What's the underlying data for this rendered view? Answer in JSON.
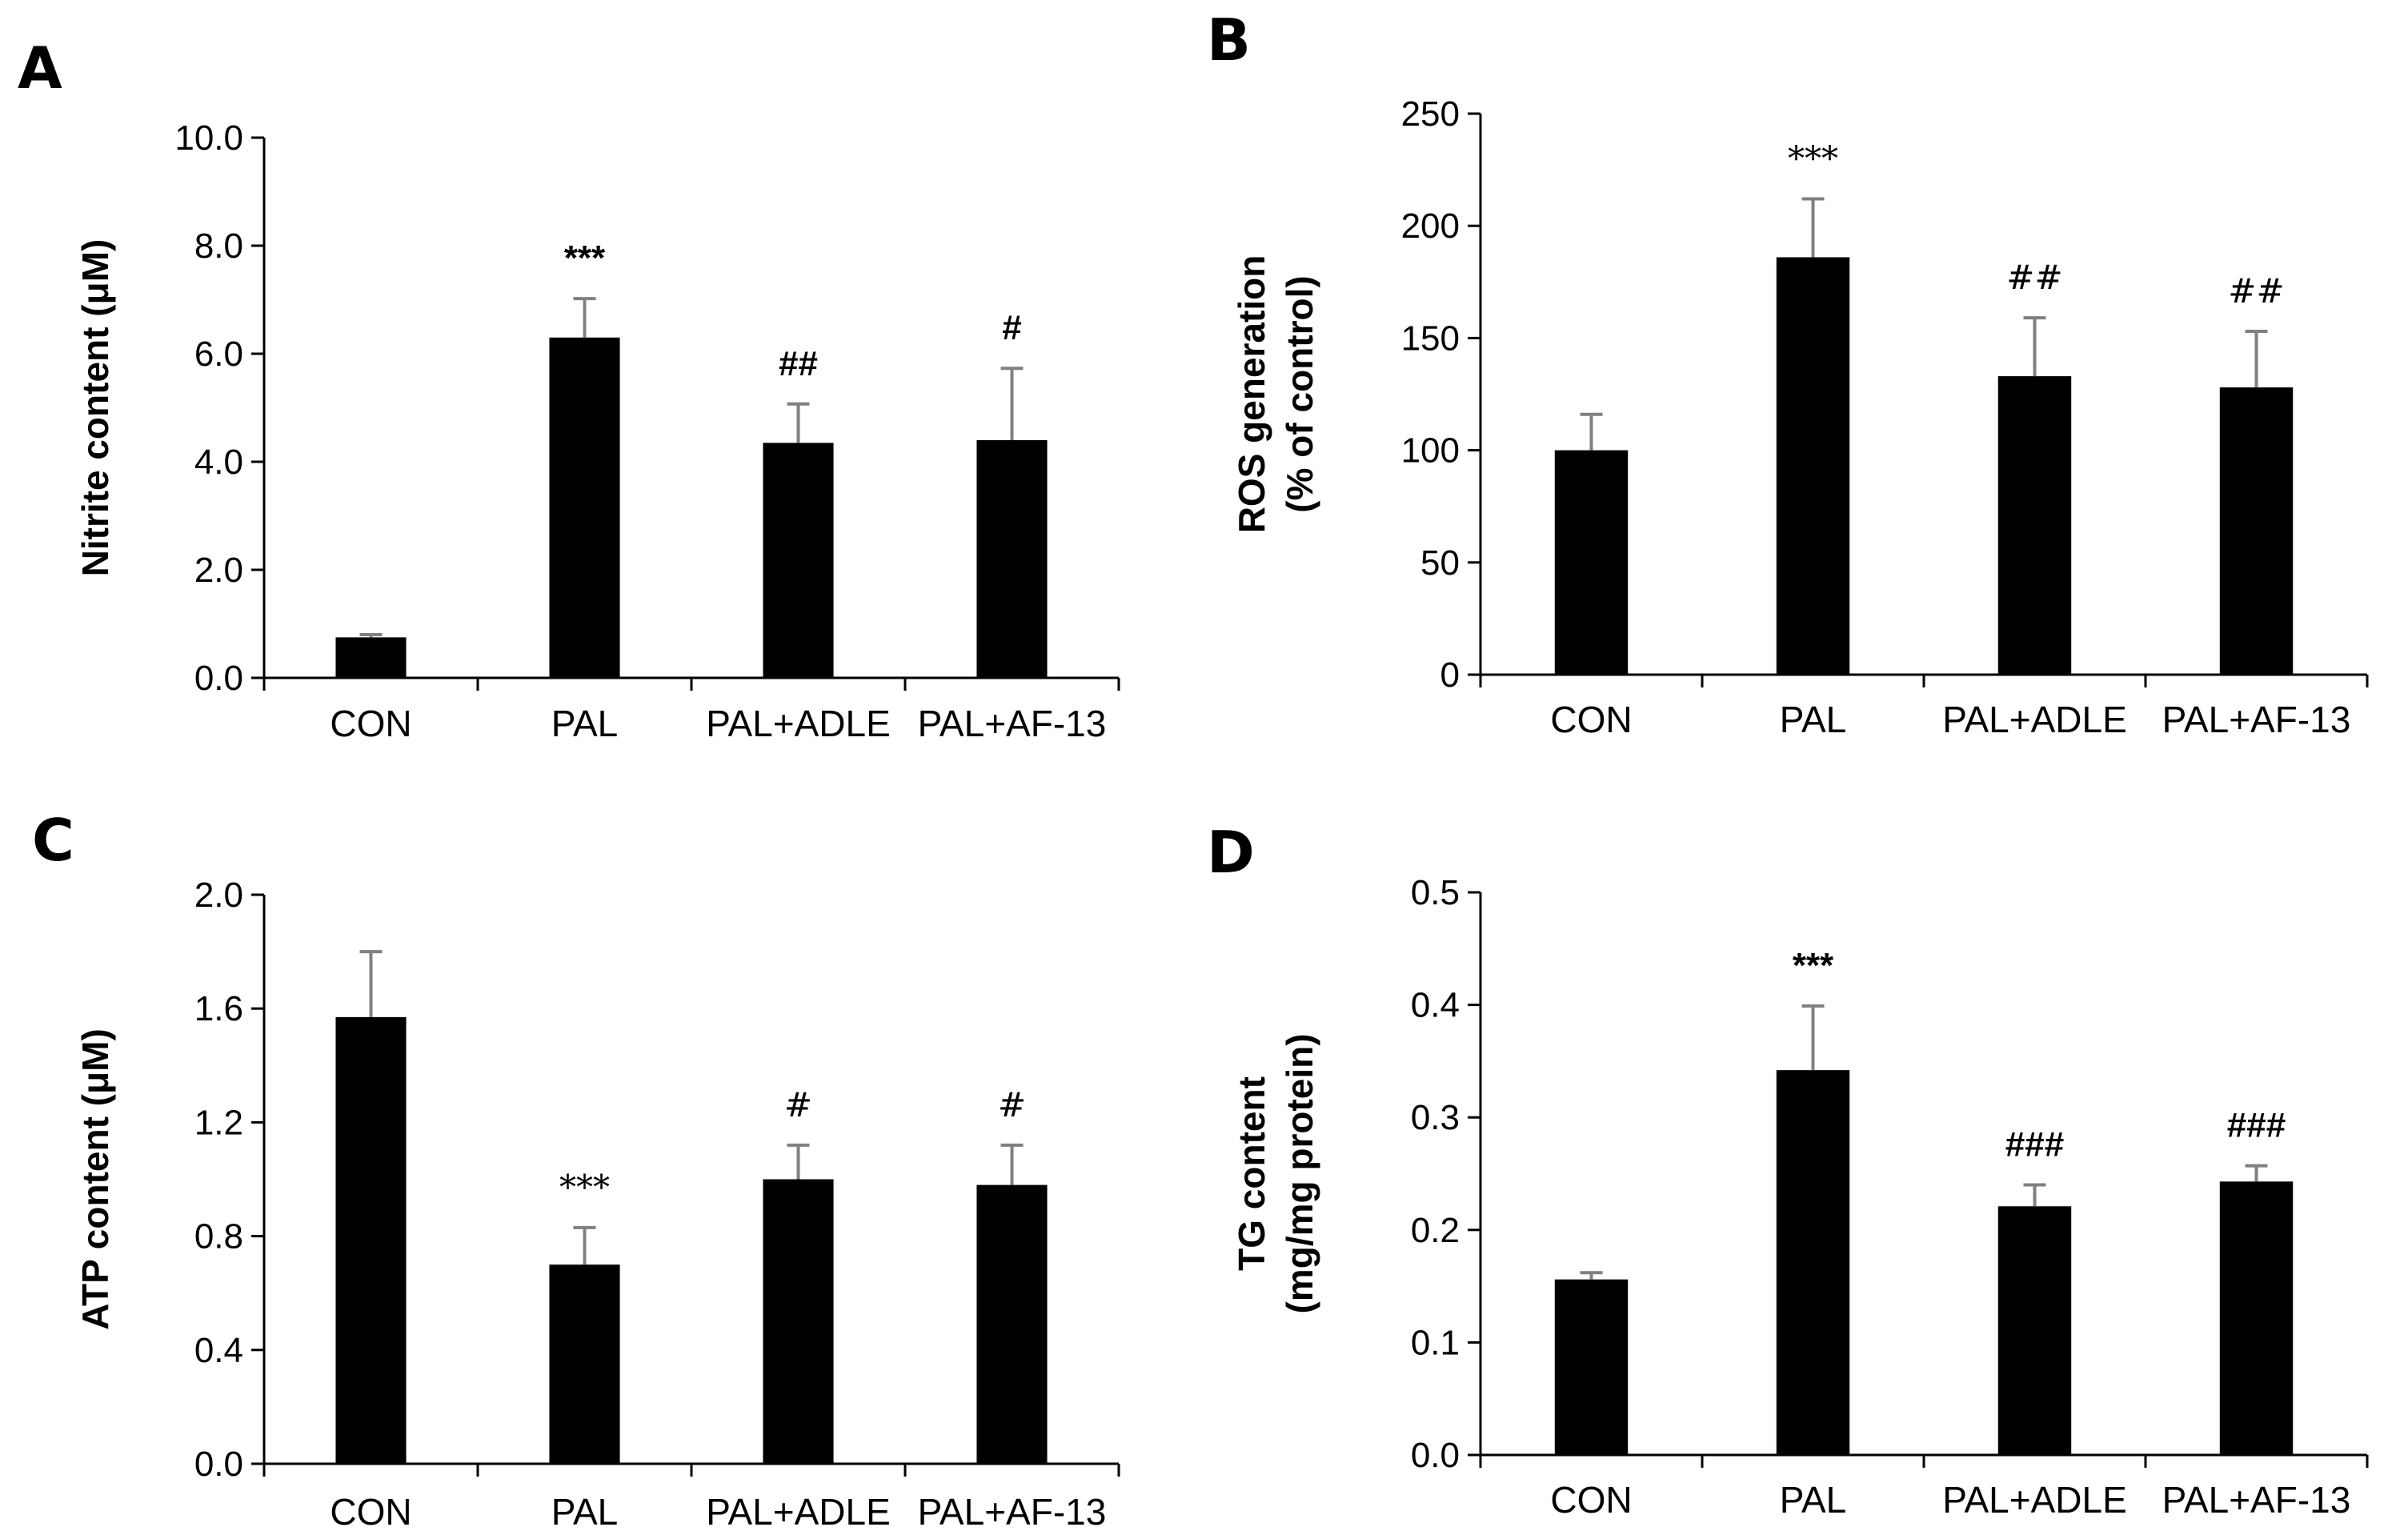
{
  "chart_data": [
    {
      "type": "bar",
      "panel": "A",
      "ylabel": "Nitrite content (μM)",
      "categories": [
        "CON",
        "PAL",
        "PAL+ADLE",
        "PAL+AF-13"
      ],
      "values": [
        0.75,
        6.3,
        4.35,
        4.4
      ],
      "errors": [
        0.05,
        0.72,
        0.72,
        1.33
      ],
      "annotations": [
        "",
        "***",
        "##",
        "#"
      ],
      "annotation_bold": true,
      "ylim": [
        0,
        10
      ],
      "yticks": [
        "0.0",
        "2.0",
        "4.0",
        "6.0",
        "8.0",
        "10.0"
      ]
    },
    {
      "type": "bar",
      "panel": "B",
      "ylabel": "ROS generation",
      "ylabel2": "(% of control)",
      "categories": [
        "CON",
        "PAL",
        "PAL+ADLE",
        "PAL+AF-13"
      ],
      "values": [
        100,
        186,
        133,
        128
      ],
      "errors": [
        16,
        26,
        26,
        25
      ],
      "annotations": [
        "",
        "***",
        "##",
        "##"
      ],
      "annotation_bold": false,
      "ylim": [
        0,
        250
      ],
      "yticks": [
        "0",
        "50",
        "100",
        "150",
        "200",
        "250"
      ]
    },
    {
      "type": "bar",
      "panel": "C",
      "ylabel": "ATP content (μM)",
      "categories": [
        "CON",
        "PAL",
        "PAL+ADLE",
        "PAL+AF-13"
      ],
      "values": [
        1.57,
        0.7,
        1.0,
        0.98
      ],
      "errors": [
        0.23,
        0.13,
        0.12,
        0.14
      ],
      "annotations": [
        "",
        "***",
        "#",
        "#"
      ],
      "annotation_bold": false,
      "ylim": [
        0,
        2
      ],
      "yticks": [
        "0.0",
        "0.4",
        "0.8",
        "1.2",
        "1.6",
        "2.0"
      ]
    },
    {
      "type": "bar",
      "panel": "D",
      "ylabel": "TG content",
      "ylabel2": "(mg/mg protein)",
      "categories": [
        "CON",
        "PAL",
        "PAL+ADLE",
        "PAL+AF-13"
      ],
      "values": [
        0.156,
        0.342,
        0.221,
        0.243
      ],
      "errors": [
        0.006,
        0.057,
        0.019,
        0.014
      ],
      "annotations": [
        "",
        "***",
        "###",
        "###"
      ],
      "annotation_bold": true,
      "ylim": [
        0,
        0.5
      ],
      "yticks": [
        "0.0",
        "0.1",
        "0.2",
        "0.3",
        "0.4",
        "0.5"
      ]
    }
  ]
}
